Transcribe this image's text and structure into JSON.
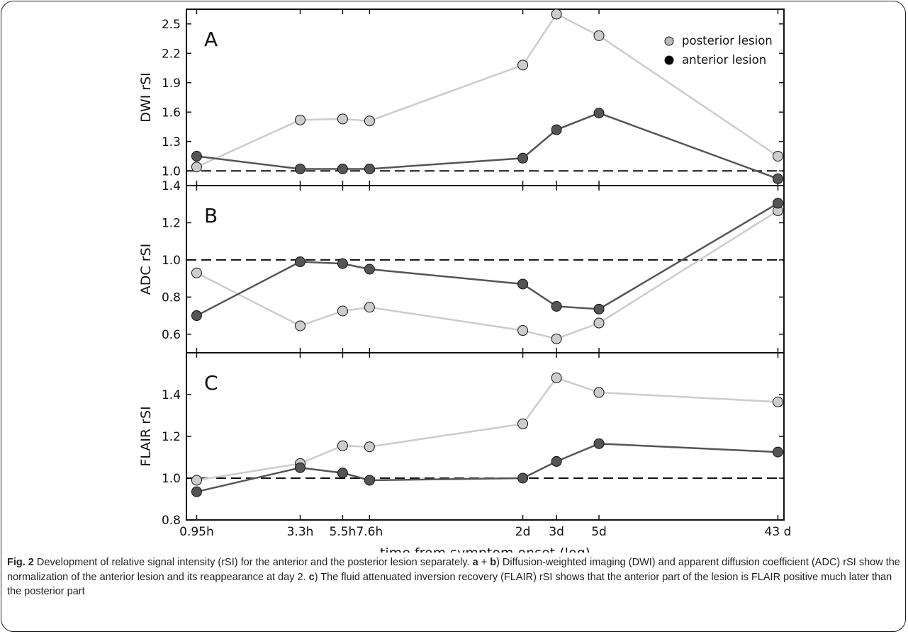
{
  "chart_data": [
    {
      "type": "line",
      "panel": "A",
      "ylabel": "DWI rSI",
      "ylim": [
        0.85,
        2.65
      ],
      "yticks": [
        "1.0",
        "1.3",
        "1.6",
        "1.9",
        "2.2",
        "2.5"
      ],
      "reference_line": 1.0,
      "series": [
        {
          "name": "posterior lesion",
          "color": "#cccccc",
          "values": [
            1.04,
            1.52,
            1.53,
            1.51,
            2.08,
            2.6,
            2.38,
            1.15
          ]
        },
        {
          "name": "anterior lesion",
          "color": "#555555",
          "values": [
            1.15,
            1.02,
            1.02,
            1.02,
            1.13,
            1.42,
            1.59,
            0.92
          ]
        }
      ]
    },
    {
      "type": "line",
      "panel": "B",
      "ylabel": "ADC rSI",
      "ylim": [
        0.5,
        1.4
      ],
      "yticks": [
        "0.6",
        "0.8",
        "1.0",
        "1.2",
        "1.4"
      ],
      "reference_line": 1.0,
      "series": [
        {
          "name": "posterior lesion",
          "color": "#cccccc",
          "values": [
            0.93,
            0.645,
            0.725,
            0.745,
            0.62,
            0.575,
            0.66,
            1.265
          ]
        },
        {
          "name": "anterior lesion",
          "color": "#555555",
          "values": [
            0.7,
            0.99,
            0.98,
            0.95,
            0.87,
            0.75,
            0.735,
            1.305
          ]
        }
      ]
    },
    {
      "type": "line",
      "panel": "C",
      "ylabel": "FLAIR rSI",
      "ylim": [
        0.8,
        1.6
      ],
      "yticks": [
        "0.8",
        "1.0",
        "1.2",
        "1.4"
      ],
      "reference_line": 1.0,
      "series": [
        {
          "name": "posterior lesion",
          "color": "#cccccc",
          "values": [
            0.99,
            1.07,
            1.155,
            1.15,
            1.26,
            1.48,
            1.41,
            1.365
          ]
        },
        {
          "name": "anterior lesion",
          "color": "#555555",
          "values": [
            0.935,
            1.05,
            1.025,
            0.99,
            1.0,
            1.08,
            1.165,
            1.125
          ]
        }
      ]
    }
  ],
  "x_axis": {
    "xlabel": "time from symptom onset (log)",
    "scale": "log",
    "unit": "hours",
    "xlim_hours": [
      0.84,
      1110
    ],
    "points_hours": [
      0.95,
      3.3,
      5.5,
      7.6,
      48,
      72,
      120,
      1032
    ],
    "tick_labels": [
      "0.95h",
      "3.3h",
      "5.5h",
      "7.6h",
      "2d",
      "3d",
      "5d",
      "43 d"
    ],
    "tick_hours": [
      0.95,
      3.3,
      5.5,
      7.6,
      48,
      72,
      120,
      1032
    ]
  },
  "legend": {
    "placement": "top-right",
    "items": [
      {
        "label": "posterior lesion",
        "color": "#bbbbbb"
      },
      {
        "label": "anterior lesion",
        "color": "#000000"
      }
    ]
  },
  "caption": {
    "fig_label": "Fig. 2",
    "part1": " Development of relative signal intensity (rSI) for the anterior and the posterior lesion separately. ",
    "a": "a",
    "plus": " + ",
    "b": "b",
    "part2": ") Diffusion-weighted imaging (DWI) and apparent diffusion coefficient (ADC) rSI show the normalization of the anterior lesion and its reappearance at day 2. ",
    "c": "c",
    "part3": ") The fluid attenuated inversion recovery (FLAIR) rSI shows that the anterior part of the lesion is FLAIR positive much later than the posterior part"
  }
}
